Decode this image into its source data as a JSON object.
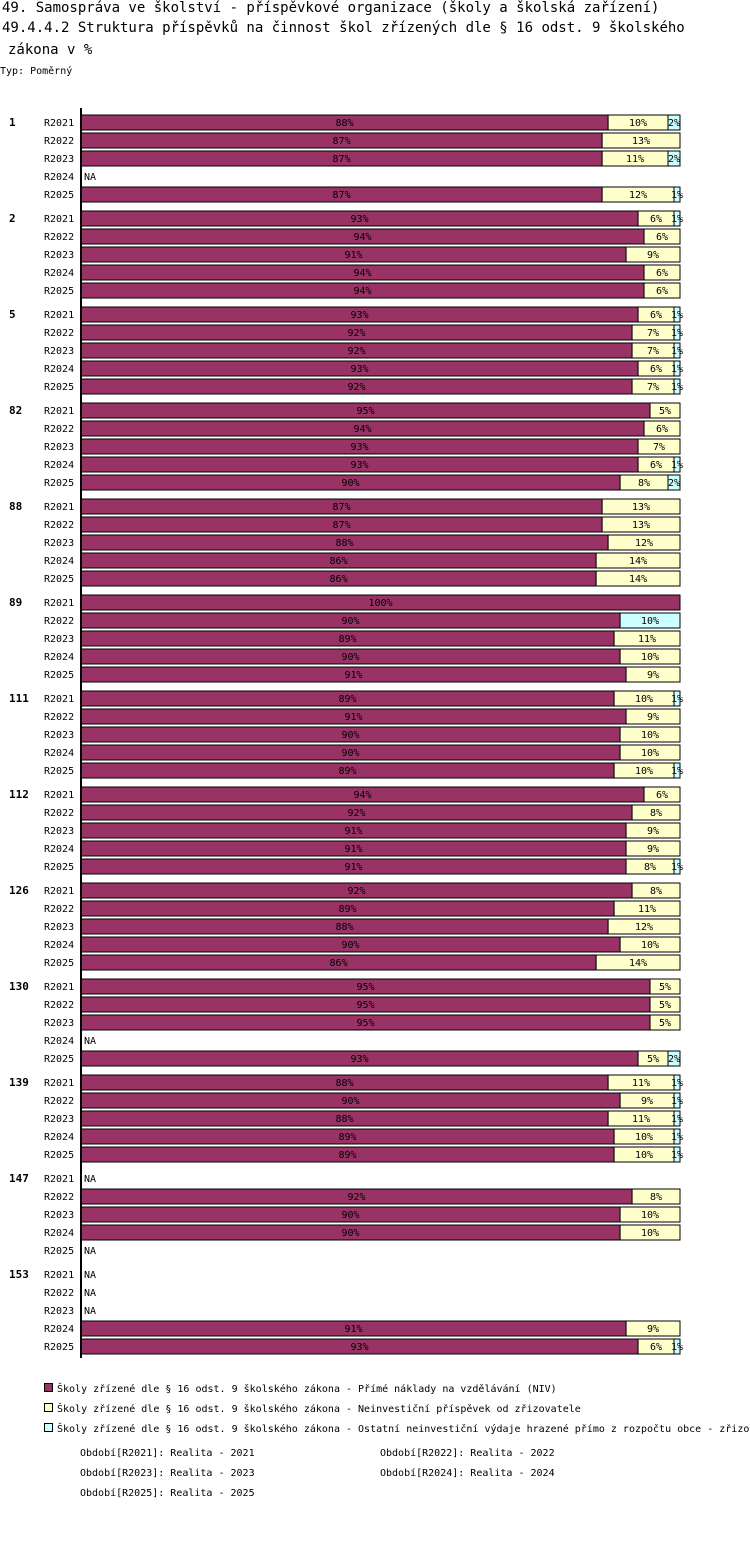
{
  "title_line1": "49. Samospráva ve školství - příspěvkové organizace (školy a školská zařízení)",
  "title_line2": "49.4.4.2 Struktura příspěvků na činnost škol zřízených dle § 16 odst. 9 školského",
  "title_line3": "zákona v %",
  "type_label": "Typ: Poměrný",
  "na_label": "NA",
  "colors": {
    "niv": "#993366",
    "neinv": "#ffffcc",
    "other": "#ccffff",
    "other_89_r2022": "#ccffff"
  },
  "chart_data": {
    "type": "bar",
    "orientation": "horizontal",
    "stacked": true,
    "normalized": true,
    "x_range": [
      0,
      100
    ],
    "series_names": [
      "Školy zřízené dle § 16 odst. 9 školského zákona - Přímé náklady na vzdělávání (NIV)",
      "Školy zřízené dle § 16 odst. 9 školského zákona  - Neinvestiční příspěvek od zřizovatele",
      "Školy zřízené dle § 16 odst. 9 školského zákona - Ostatní neinvestiční výdaje hrazené přímo z rozpočtu obce - zřizo"
    ],
    "groups": [
      {
        "id": "1",
        "rows": [
          {
            "period": "R2021",
            "values": [
              88,
              10,
              2
            ]
          },
          {
            "period": "R2022",
            "values": [
              87,
              13,
              0
            ]
          },
          {
            "period": "R2023",
            "values": [
              87,
              11,
              2
            ]
          },
          {
            "period": "R2024",
            "values": null
          },
          {
            "period": "R2025",
            "values": [
              87,
              12,
              1
            ]
          }
        ]
      },
      {
        "id": "2",
        "rows": [
          {
            "period": "R2021",
            "values": [
              93,
              6,
              1
            ]
          },
          {
            "period": "R2022",
            "values": [
              94,
              6,
              0
            ]
          },
          {
            "period": "R2023",
            "values": [
              91,
              9,
              0
            ]
          },
          {
            "period": "R2024",
            "values": [
              94,
              6,
              0
            ]
          },
          {
            "period": "R2025",
            "values": [
              94,
              6,
              0
            ]
          }
        ]
      },
      {
        "id": "5",
        "rows": [
          {
            "period": "R2021",
            "values": [
              93,
              6,
              1
            ]
          },
          {
            "period": "R2022",
            "values": [
              92,
              7,
              1
            ]
          },
          {
            "period": "R2023",
            "values": [
              92,
              7,
              1
            ]
          },
          {
            "period": "R2024",
            "values": [
              93,
              6,
              1
            ]
          },
          {
            "period": "R2025",
            "values": [
              92,
              7,
              1
            ]
          }
        ]
      },
      {
        "id": "82",
        "rows": [
          {
            "period": "R2021",
            "values": [
              95,
              5,
              0
            ]
          },
          {
            "period": "R2022",
            "values": [
              94,
              6,
              0
            ]
          },
          {
            "period": "R2023",
            "values": [
              93,
              7,
              0
            ]
          },
          {
            "period": "R2024",
            "values": [
              93,
              6,
              1
            ]
          },
          {
            "period": "R2025",
            "values": [
              90,
              8,
              2
            ]
          }
        ]
      },
      {
        "id": "88",
        "rows": [
          {
            "period": "R2021",
            "values": [
              87,
              13,
              0
            ]
          },
          {
            "period": "R2022",
            "values": [
              87,
              13,
              0
            ]
          },
          {
            "period": "R2023",
            "values": [
              88,
              12,
              0
            ]
          },
          {
            "period": "R2024",
            "values": [
              86,
              14,
              0
            ]
          },
          {
            "period": "R2025",
            "values": [
              86,
              14,
              0
            ]
          }
        ]
      },
      {
        "id": "89",
        "rows": [
          {
            "period": "R2021",
            "values": [
              100,
              0,
              0
            ]
          },
          {
            "period": "R2022",
            "values": [
              90,
              0,
              10
            ]
          },
          {
            "period": "R2023",
            "values": [
              89,
              11,
              0
            ]
          },
          {
            "period": "R2024",
            "values": [
              90,
              10,
              0
            ]
          },
          {
            "period": "R2025",
            "values": [
              91,
              9,
              0
            ]
          }
        ]
      },
      {
        "id": "111",
        "rows": [
          {
            "period": "R2021",
            "values": [
              89,
              10,
              1
            ]
          },
          {
            "period": "R2022",
            "values": [
              91,
              9,
              0
            ]
          },
          {
            "period": "R2023",
            "values": [
              90,
              10,
              0
            ]
          },
          {
            "period": "R2024",
            "values": [
              90,
              10,
              0
            ]
          },
          {
            "period": "R2025",
            "values": [
              89,
              10,
              1
            ]
          }
        ]
      },
      {
        "id": "112",
        "rows": [
          {
            "period": "R2021",
            "values": [
              94,
              6,
              0
            ]
          },
          {
            "period": "R2022",
            "values": [
              92,
              8,
              0
            ]
          },
          {
            "period": "R2023",
            "values": [
              91,
              9,
              0
            ]
          },
          {
            "period": "R2024",
            "values": [
              91,
              9,
              0
            ]
          },
          {
            "period": "R2025",
            "values": [
              91,
              8,
              1
            ]
          }
        ]
      },
      {
        "id": "126",
        "rows": [
          {
            "period": "R2021",
            "values": [
              92,
              8,
              0
            ]
          },
          {
            "period": "R2022",
            "values": [
              89,
              11,
              0
            ]
          },
          {
            "period": "R2023",
            "values": [
              88,
              12,
              0
            ]
          },
          {
            "period": "R2024",
            "values": [
              90,
              10,
              0
            ]
          },
          {
            "period": "R2025",
            "values": [
              86,
              14,
              0
            ]
          }
        ]
      },
      {
        "id": "130",
        "rows": [
          {
            "period": "R2021",
            "values": [
              95,
              5,
              0
            ]
          },
          {
            "period": "R2022",
            "values": [
              95,
              5,
              0
            ]
          },
          {
            "period": "R2023",
            "values": [
              95,
              5,
              0
            ]
          },
          {
            "period": "R2024",
            "values": null
          },
          {
            "period": "R2025",
            "values": [
              93,
              5,
              2
            ]
          }
        ]
      },
      {
        "id": "139",
        "rows": [
          {
            "period": "R2021",
            "values": [
              88,
              11,
              1
            ]
          },
          {
            "period": "R2022",
            "values": [
              90,
              9,
              1
            ]
          },
          {
            "period": "R2023",
            "values": [
              88,
              11,
              1
            ]
          },
          {
            "period": "R2024",
            "values": [
              89,
              10,
              1
            ]
          },
          {
            "period": "R2025",
            "values": [
              89,
              10,
              1
            ]
          }
        ]
      },
      {
        "id": "147",
        "rows": [
          {
            "period": "R2021",
            "values": null
          },
          {
            "period": "R2022",
            "values": [
              92,
              8,
              0
            ]
          },
          {
            "period": "R2023",
            "values": [
              90,
              10,
              0
            ]
          },
          {
            "period": "R2024",
            "values": [
              90,
              10,
              0
            ]
          },
          {
            "period": "R2025",
            "values": null
          }
        ]
      },
      {
        "id": "153",
        "rows": [
          {
            "period": "R2021",
            "values": null
          },
          {
            "period": "R2022",
            "values": null
          },
          {
            "period": "R2023",
            "values": null
          },
          {
            "period": "R2024",
            "values": [
              91,
              9,
              0
            ]
          },
          {
            "period": "R2025",
            "values": [
              93,
              6,
              1
            ]
          }
        ]
      }
    ]
  },
  "legend": {
    "items": [
      "Školy zřízené dle § 16 odst. 9 školského zákona - Přímé náklady na vzdělávání (NIV)",
      "Školy zřízené dle § 16 odst. 9 školského zákona  - Neinvestiční příspěvek od zřizovatele",
      "Školy zřízené dle § 16 odst. 9 školského zákona - Ostatní neinvestiční výdaje hrazené přímo z rozpočtu obce - zřizo"
    ],
    "periods": [
      "Období[R2021]: Realita - 2021",
      "Období[R2022]: Realita - 2022",
      "Období[R2023]: Realita - 2023",
      "Období[R2024]: Realita - 2024",
      "Období[R2025]: Realita - 2025"
    ]
  }
}
